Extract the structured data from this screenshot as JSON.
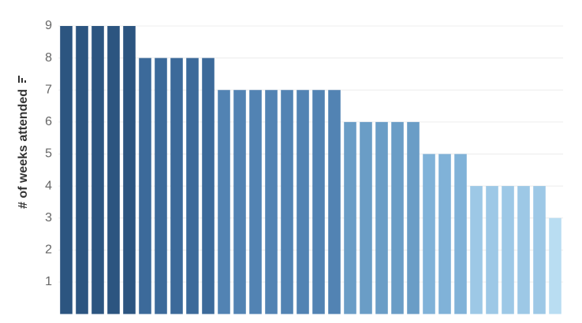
{
  "chart_data": {
    "type": "bar",
    "y_label": "# of weeks attended",
    "categories": [
      null,
      null,
      null,
      null,
      null,
      null,
      null,
      null,
      null,
      null,
      null,
      null,
      null,
      null,
      null,
      null,
      null,
      null,
      null,
      null,
      null,
      null,
      null,
      null,
      null,
      null,
      null,
      null,
      null,
      null,
      null,
      null
    ],
    "values": [
      9,
      9,
      9,
      9,
      9,
      8,
      8,
      8,
      8,
      8,
      7,
      7,
      7,
      7,
      7,
      7,
      7,
      7,
      6,
      6,
      6,
      6,
      6,
      5,
      5,
      5,
      4,
      4,
      4,
      4,
      4,
      3
    ],
    "colors": [
      "#2c5580",
      "#2c5580",
      "#2c5580",
      "#2c5580",
      "#2c5580",
      "#3c6a9a",
      "#3c6a9a",
      "#3c6a9a",
      "#3c6a9a",
      "#3c6a9a",
      "#5283b3",
      "#5283b3",
      "#5283b3",
      "#5283b3",
      "#5283b3",
      "#5283b3",
      "#5283b3",
      "#5283b3",
      "#6a9dc6",
      "#6a9dc6",
      "#6a9dc6",
      "#6a9dc6",
      "#6a9dc6",
      "#80b2d8",
      "#80b2d8",
      "#80b2d8",
      "#9dc8e6",
      "#9dc8e6",
      "#9dc8e6",
      "#9dc8e6",
      "#9dc8e6",
      "#b9ddf2"
    ],
    "ylim": [
      0,
      9
    ],
    "yticks": [
      1,
      2,
      3,
      4,
      5,
      6,
      7,
      8,
      9
    ],
    "grid": true
  }
}
